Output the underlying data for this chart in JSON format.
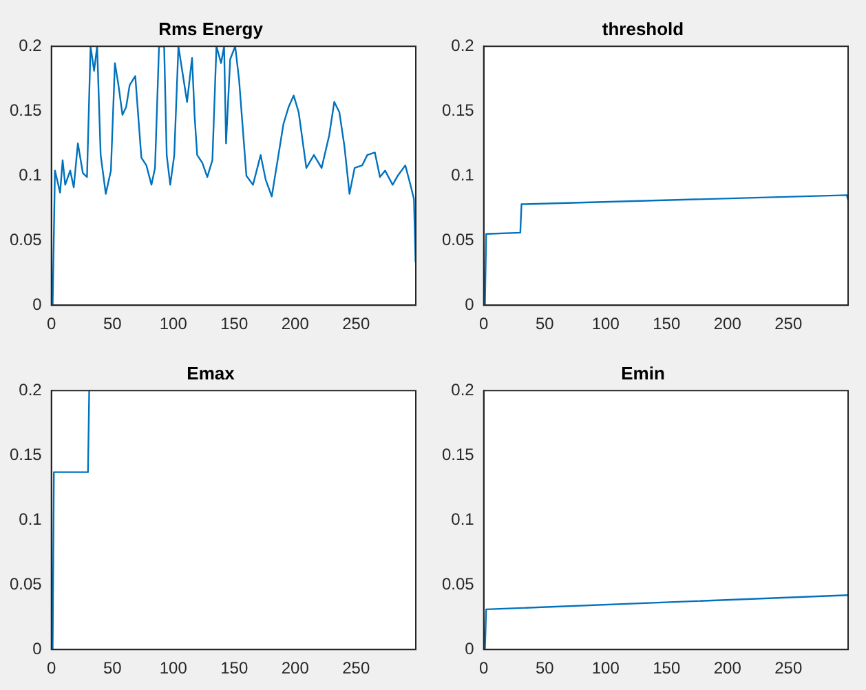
{
  "chart_data": [
    {
      "type": "line",
      "title": "Rms Energy",
      "color": "#0072bd",
      "xlim": [
        0,
        299
      ],
      "ylim": [
        0,
        0.2
      ],
      "xticks": [
        0,
        50,
        100,
        150,
        200,
        250
      ],
      "yticks": [
        0,
        0.05,
        0.1,
        0.15,
        0.2
      ],
      "x": [
        1,
        2.9,
        7.1,
        9.2,
        11.3,
        15.4,
        18.3,
        21.7,
        25.8,
        29.2,
        32.1,
        35,
        37.5,
        40.4,
        44.6,
        48.8,
        52.1,
        55,
        58.3,
        61.3,
        64.2,
        68.8,
        73.8,
        77.9,
        82.1,
        85,
        88.3,
        92.5,
        94.6,
        97.5,
        100.8,
        104.2,
        111.3,
        115.4,
        117.5,
        119.6,
        123.8,
        127.9,
        132.1,
        135.4,
        139.2,
        141.7,
        143.3,
        146.7,
        150.8,
        154,
        160,
        165.4,
        171.7,
        175.8,
        180.8,
        186.3,
        190.4,
        194.6,
        198.8,
        202.9,
        209.2,
        215.4,
        221.7,
        227.9,
        232.1,
        236.3,
        240.4,
        244.6,
        248.8,
        255,
        259.2,
        265.4,
        269.6,
        273.8,
        280,
        284.2,
        290.4,
        294.6,
        297.5,
        298.8
      ],
      "values": [
        0,
        0.104,
        0.087,
        0.112,
        0.093,
        0.104,
        0.091,
        0.125,
        0.102,
        0.099,
        0.2,
        0.181,
        0.2,
        0.116,
        0.086,
        0.104,
        0.187,
        0.17,
        0.147,
        0.153,
        0.17,
        0.177,
        0.114,
        0.108,
        0.093,
        0.106,
        0.2,
        0.2,
        0.116,
        0.093,
        0.116,
        0.2,
        0.157,
        0.191,
        0.146,
        0.116,
        0.11,
        0.099,
        0.112,
        0.2,
        0.187,
        0.2,
        0.125,
        0.19,
        0.2,
        0.174,
        0.1,
        0.093,
        0.116,
        0.097,
        0.084,
        0.116,
        0.14,
        0.153,
        0.162,
        0.149,
        0.106,
        0.116,
        0.106,
        0.131,
        0.157,
        0.149,
        0.123,
        0.086,
        0.106,
        0.108,
        0.116,
        0.118,
        0.099,
        0.104,
        0.093,
        0.1,
        0.108,
        0.093,
        0.082,
        0.033
      ]
    },
    {
      "type": "line",
      "title": "threshold",
      "color": "#0072bd",
      "xlim": [
        0,
        299
      ],
      "ylim": [
        0,
        0.2
      ],
      "xticks": [
        0,
        50,
        100,
        150,
        200,
        250
      ],
      "yticks": [
        0,
        0.05,
        0.1,
        0.15,
        0.2
      ],
      "x": [
        1,
        2,
        30,
        31,
        298,
        299
      ],
      "values": [
        0,
        0.055,
        0.056,
        0.078,
        0.085,
        0.081
      ]
    },
    {
      "type": "line",
      "title": "Emax",
      "color": "#0072bd",
      "xlim": [
        0,
        299
      ],
      "ylim": [
        0,
        0.2
      ],
      "xticks": [
        0,
        50,
        100,
        150,
        200,
        250
      ],
      "yticks": [
        0,
        0.05,
        0.1,
        0.15,
        0.2
      ],
      "x": [
        1,
        2,
        30,
        31
      ],
      "values": [
        0,
        0.137,
        0.137,
        0.2
      ]
    },
    {
      "type": "line",
      "title": "Emin",
      "color": "#0072bd",
      "xlim": [
        0,
        299
      ],
      "ylim": [
        0,
        0.2
      ],
      "xticks": [
        0,
        50,
        100,
        150,
        200,
        250
      ],
      "yticks": [
        0,
        0.05,
        0.1,
        0.15,
        0.2
      ],
      "x": [
        1,
        2,
        299
      ],
      "values": [
        0,
        0.031,
        0.042
      ]
    }
  ]
}
